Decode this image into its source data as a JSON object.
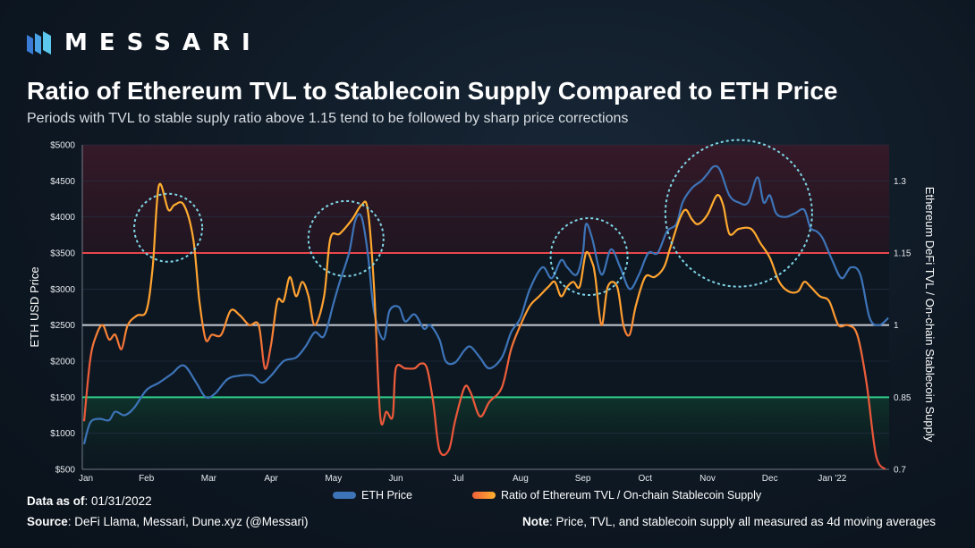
{
  "brand": {
    "name": "MESSARI"
  },
  "header": {
    "title": "Ratio of Ethereum TVL to Stablecoin Supply Compared to ETH Price",
    "subtitle": "Periods with TVL to stable suply ratio above 1.15 tend to be followed by sharp price corrections"
  },
  "footer": {
    "asof_label": "Data as of",
    "asof_value": ": 01/31/2022",
    "source_label": "Source",
    "source_value": ": DeFi Llama, Messari, Dune.xyz (@Messari)",
    "note_label": "Note",
    "note_value": ":  Price, TVL, and stablecoin supply all measured as 4d moving averages"
  },
  "colors": {
    "eth": "#3d74b8",
    "ratio_high": "#ffb02e",
    "ratio_low": "#f0603a",
    "line_115": "#e8474b",
    "line_1": "#c8ccd2",
    "line_085": "#2ecc8a",
    "circle": "#7fd6e6"
  },
  "chart_data": {
    "type": "line",
    "title": "Ratio of Ethereum TVL to Stablecoin Supply Compared to ETH Price",
    "x_ticks": [
      "Jan",
      "Feb",
      "Mar",
      "Apr",
      "May",
      "Jun",
      "Jul",
      "Aug",
      "Sep",
      "Oct",
      "Nov",
      "Dec",
      "Jan '22"
    ],
    "ylabel_left": "ETH USD Price",
    "ylabel_right": "Ethereum DeFi TVL / On-chain Stablecoin Supply",
    "ylim_left": [
      500,
      5000
    ],
    "ylim_right": [
      0.7,
      1.375
    ],
    "y_ticks_left": [
      "$500",
      "$1000",
      "$1500",
      "$2000",
      "$2500",
      "$3000",
      "$3500",
      "$4000",
      "$4500",
      "$5000"
    ],
    "y_ticks_right": [
      "0.7",
      "0.85",
      "1",
      "1.15",
      "1.3"
    ],
    "reference_lines": [
      1.15,
      1.0,
      0.85
    ],
    "series": [
      {
        "name": "ETH Price",
        "axis": "left",
        "points": [
          [
            0,
            850
          ],
          [
            0.1,
            1150
          ],
          [
            0.25,
            1200
          ],
          [
            0.4,
            1180
          ],
          [
            0.5,
            1300
          ],
          [
            0.65,
            1250
          ],
          [
            0.8,
            1350
          ],
          [
            1.0,
            1600
          ],
          [
            1.2,
            1700
          ],
          [
            1.4,
            1820
          ],
          [
            1.6,
            1940
          ],
          [
            1.8,
            1700
          ],
          [
            1.95,
            1500
          ],
          [
            2.1,
            1550
          ],
          [
            2.3,
            1750
          ],
          [
            2.5,
            1800
          ],
          [
            2.7,
            1800
          ],
          [
            2.85,
            1700
          ],
          [
            3.0,
            1800
          ],
          [
            3.2,
            2000
          ],
          [
            3.4,
            2050
          ],
          [
            3.55,
            2200
          ],
          [
            3.7,
            2400
          ],
          [
            3.85,
            2350
          ],
          [
            4.0,
            2800
          ],
          [
            4.1,
            3100
          ],
          [
            4.25,
            3500
          ],
          [
            4.35,
            3950
          ],
          [
            4.45,
            4000
          ],
          [
            4.55,
            3500
          ],
          [
            4.65,
            2700
          ],
          [
            4.8,
            2300
          ],
          [
            4.9,
            2700
          ],
          [
            5.05,
            2750
          ],
          [
            5.15,
            2550
          ],
          [
            5.3,
            2650
          ],
          [
            5.45,
            2450
          ],
          [
            5.55,
            2500
          ],
          [
            5.7,
            2300
          ],
          [
            5.8,
            2000
          ],
          [
            5.95,
            1980
          ],
          [
            6.1,
            2150
          ],
          [
            6.2,
            2200
          ],
          [
            6.35,
            2050
          ],
          [
            6.5,
            1900
          ],
          [
            6.7,
            2050
          ],
          [
            6.85,
            2400
          ],
          [
            7.0,
            2600
          ],
          [
            7.15,
            3000
          ],
          [
            7.35,
            3300
          ],
          [
            7.5,
            3150
          ],
          [
            7.65,
            3400
          ],
          [
            7.75,
            3300
          ],
          [
            7.9,
            3200
          ],
          [
            8.0,
            3500
          ],
          [
            8.05,
            3900
          ],
          [
            8.15,
            3700
          ],
          [
            8.3,
            3200
          ],
          [
            8.45,
            3550
          ],
          [
            8.6,
            3300
          ],
          [
            8.75,
            3000
          ],
          [
            8.9,
            3200
          ],
          [
            9.05,
            3500
          ],
          [
            9.2,
            3500
          ],
          [
            9.35,
            3800
          ],
          [
            9.5,
            3900
          ],
          [
            9.6,
            4200
          ],
          [
            9.75,
            4400
          ],
          [
            9.9,
            4500
          ],
          [
            10.0,
            4600
          ],
          [
            10.1,
            4700
          ],
          [
            10.2,
            4650
          ],
          [
            10.35,
            4300
          ],
          [
            10.5,
            4200
          ],
          [
            10.65,
            4200
          ],
          [
            10.8,
            4550
          ],
          [
            10.9,
            4200
          ],
          [
            11.0,
            4300
          ],
          [
            11.1,
            4050
          ],
          [
            11.25,
            4000
          ],
          [
            11.4,
            4050
          ],
          [
            11.55,
            4100
          ],
          [
            11.65,
            3850
          ],
          [
            11.75,
            3800
          ],
          [
            11.85,
            3700
          ],
          [
            12.0,
            3400
          ],
          [
            12.15,
            3150
          ],
          [
            12.3,
            3300
          ],
          [
            12.45,
            3200
          ],
          [
            12.6,
            2600
          ],
          [
            12.75,
            2500
          ],
          [
            12.9,
            2600
          ]
        ]
      },
      {
        "name": "Ratio of Ethereum TVL / On-chain Stablecoin Supply",
        "axis": "right",
        "points": [
          [
            0,
            0.8
          ],
          [
            0.1,
            0.93
          ],
          [
            0.2,
            0.98
          ],
          [
            0.3,
            1.0
          ],
          [
            0.4,
            0.97
          ],
          [
            0.5,
            0.98
          ],
          [
            0.6,
            0.95
          ],
          [
            0.7,
            1.0
          ],
          [
            0.85,
            1.02
          ],
          [
            1.0,
            1.03
          ],
          [
            1.1,
            1.12
          ],
          [
            1.2,
            1.29
          ],
          [
            1.35,
            1.24
          ],
          [
            1.45,
            1.25
          ],
          [
            1.6,
            1.25
          ],
          [
            1.75,
            1.18
          ],
          [
            1.85,
            1.05
          ],
          [
            1.95,
            0.97
          ],
          [
            2.05,
            0.98
          ],
          [
            2.2,
            0.98
          ],
          [
            2.35,
            1.03
          ],
          [
            2.5,
            1.02
          ],
          [
            2.65,
            1.0
          ],
          [
            2.8,
            1.0
          ],
          [
            2.9,
            0.91
          ],
          [
            3.0,
            0.96
          ],
          [
            3.1,
            1.05
          ],
          [
            3.2,
            1.05
          ],
          [
            3.3,
            1.1
          ],
          [
            3.4,
            1.06
          ],
          [
            3.5,
            1.09
          ],
          [
            3.6,
            1.06
          ],
          [
            3.7,
            1.0
          ],
          [
            3.85,
            1.06
          ],
          [
            3.95,
            1.18
          ],
          [
            4.1,
            1.19
          ],
          [
            4.3,
            1.22
          ],
          [
            4.45,
            1.25
          ],
          [
            4.55,
            1.24
          ],
          [
            4.65,
            1.08
          ],
          [
            4.75,
            0.81
          ],
          [
            4.85,
            0.82
          ],
          [
            4.95,
            0.81
          ],
          [
            5.0,
            0.91
          ],
          [
            5.15,
            0.91
          ],
          [
            5.3,
            0.91
          ],
          [
            5.4,
            0.92
          ],
          [
            5.5,
            0.91
          ],
          [
            5.6,
            0.84
          ],
          [
            5.7,
            0.74
          ],
          [
            5.85,
            0.74
          ],
          [
            5.95,
            0.8
          ],
          [
            6.1,
            0.87
          ],
          [
            6.2,
            0.86
          ],
          [
            6.35,
            0.81
          ],
          [
            6.5,
            0.84
          ],
          [
            6.7,
            0.87
          ],
          [
            6.85,
            0.95
          ],
          [
            7.0,
            1.0
          ],
          [
            7.15,
            1.04
          ],
          [
            7.3,
            1.06
          ],
          [
            7.45,
            1.08
          ],
          [
            7.55,
            1.09
          ],
          [
            7.65,
            1.06
          ],
          [
            7.75,
            1.08
          ],
          [
            7.85,
            1.09
          ],
          [
            7.95,
            1.08
          ],
          [
            8.05,
            1.15
          ],
          [
            8.15,
            1.13
          ],
          [
            8.2,
            1.1
          ],
          [
            8.3,
            1.0
          ],
          [
            8.4,
            1.08
          ],
          [
            8.55,
            1.08
          ],
          [
            8.65,
            1.0
          ],
          [
            8.75,
            0.98
          ],
          [
            8.85,
            1.04
          ],
          [
            9.0,
            1.1
          ],
          [
            9.15,
            1.1
          ],
          [
            9.3,
            1.12
          ],
          [
            9.4,
            1.16
          ],
          [
            9.55,
            1.22
          ],
          [
            9.65,
            1.24
          ],
          [
            9.75,
            1.22
          ],
          [
            9.85,
            1.21
          ],
          [
            10.0,
            1.23
          ],
          [
            10.15,
            1.27
          ],
          [
            10.25,
            1.25
          ],
          [
            10.35,
            1.19
          ],
          [
            10.5,
            1.2
          ],
          [
            10.7,
            1.2
          ],
          [
            10.85,
            1.17
          ],
          [
            11.0,
            1.14
          ],
          [
            11.15,
            1.09
          ],
          [
            11.3,
            1.07
          ],
          [
            11.45,
            1.07
          ],
          [
            11.55,
            1.09
          ],
          [
            11.65,
            1.08
          ],
          [
            11.8,
            1.06
          ],
          [
            11.95,
            1.05
          ],
          [
            12.1,
            1.0
          ],
          [
            12.25,
            1.0
          ],
          [
            12.4,
            0.98
          ],
          [
            12.55,
            0.88
          ],
          [
            12.7,
            0.73
          ],
          [
            12.85,
            0.7
          ]
        ]
      }
    ],
    "legend": [
      "ETH Price",
      "Ratio of Ethereum TVL / On-chain Stablecoin Supply"
    ]
  }
}
